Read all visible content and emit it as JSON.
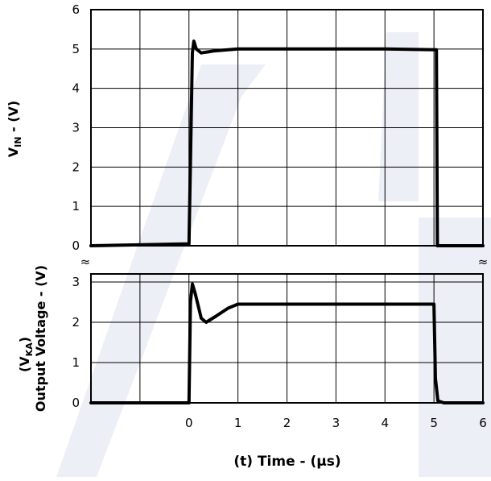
{
  "chart_data": [
    {
      "type": "line",
      "ylabel_main": "V",
      "ylabel_sub": "IN",
      "ylabel_rest": " - (V)",
      "xlim": [
        -2,
        6
      ],
      "ylim": [
        0,
        6
      ],
      "yticks": [
        "0",
        "1",
        "2",
        "3",
        "4",
        "5",
        "6"
      ],
      "grid": true,
      "series": [
        {
          "points": [
            [
              -2,
              0
            ],
            [
              0,
              0.05
            ],
            [
              0.07,
              4.9
            ],
            [
              0.1,
              5.2
            ],
            [
              0.15,
              5.0
            ],
            [
              0.25,
              4.9
            ],
            [
              0.5,
              4.95
            ],
            [
              1,
              5.0
            ],
            [
              2,
              5.0
            ],
            [
              3,
              5.0
            ],
            [
              4,
              5.0
            ],
            [
              5.05,
              4.98
            ],
            [
              5.07,
              0
            ],
            [
              6,
              0
            ]
          ]
        }
      ]
    },
    {
      "type": "line",
      "ylabel_line1_main": "(V",
      "ylabel_line1_sub": "KA",
      "ylabel_line1_rest": ")",
      "ylabel_line2": "Output Voltage - (V)",
      "xlabel": "(t)  Time - (µs)",
      "xlim": [
        -2,
        6
      ],
      "ylim": [
        0,
        3.2
      ],
      "yticks": [
        "0",
        "1",
        "2",
        "3"
      ],
      "xticks": [
        "0",
        "1",
        "2",
        "3",
        "4",
        "5",
        "6"
      ],
      "grid": true,
      "series": [
        {
          "points": [
            [
              -2,
              0
            ],
            [
              0,
              0
            ],
            [
              0.03,
              2.5
            ],
            [
              0.07,
              2.95
            ],
            [
              0.13,
              2.7
            ],
            [
              0.25,
              2.1
            ],
            [
              0.35,
              2.0
            ],
            [
              0.55,
              2.15
            ],
            [
              0.8,
              2.35
            ],
            [
              1.0,
              2.45
            ],
            [
              1.5,
              2.45
            ],
            [
              2,
              2.45
            ],
            [
              3,
              2.45
            ],
            [
              4,
              2.45
            ],
            [
              5.0,
              2.45
            ],
            [
              5.03,
              0.6
            ],
            [
              5.08,
              0.05
            ],
            [
              5.2,
              0
            ],
            [
              6,
              0
            ]
          ]
        }
      ]
    }
  ]
}
